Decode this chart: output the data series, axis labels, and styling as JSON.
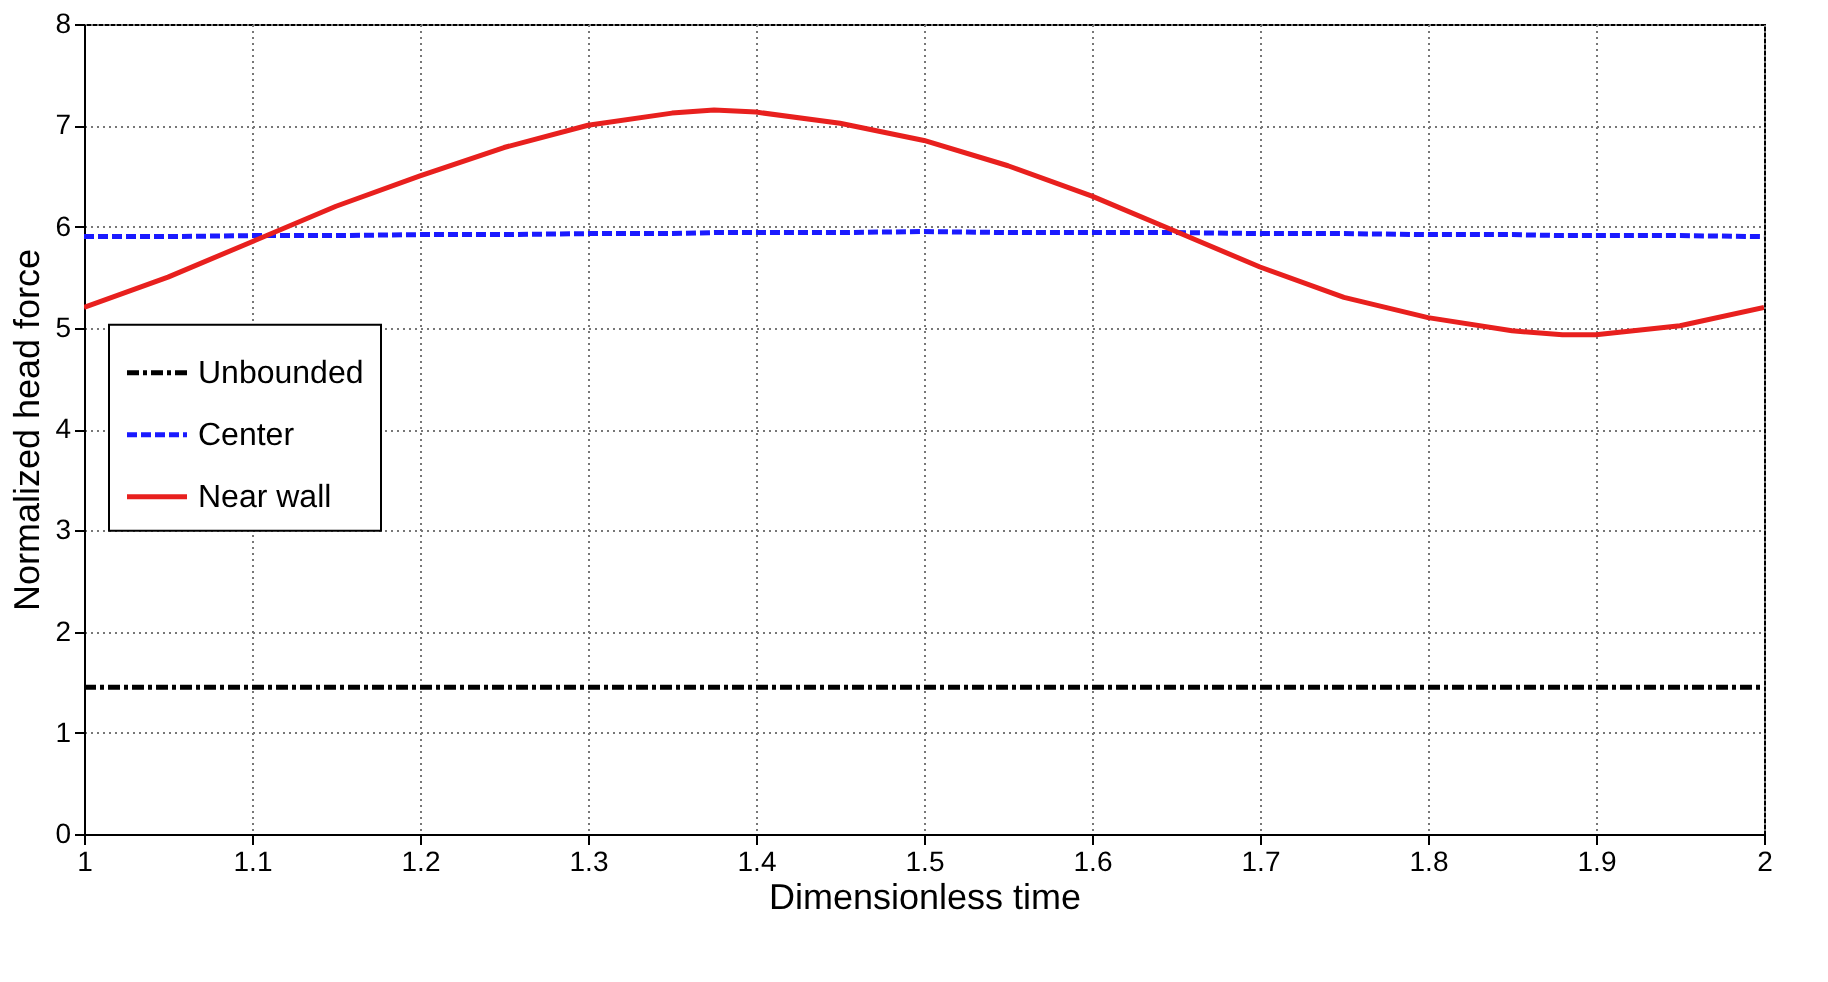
{
  "chart_data": {
    "type": "line",
    "xlabel": "Dimensionless time",
    "ylabel": "Normalized head force",
    "xlim": [
      1,
      2
    ],
    "xticks": [
      1,
      1.1,
      1.2,
      1.3,
      1.4,
      1.5,
      1.6,
      1.7,
      1.8,
      1.9,
      2
    ],
    "ylim": [
      0,
      8
    ],
    "yticks": [
      0,
      1,
      2,
      3,
      4,
      5,
      6,
      7,
      8
    ],
    "grid": true,
    "legend": "left",
    "marker": "none",
    "x": [
      1,
      1.05,
      1.1,
      1.15,
      1.2,
      1.25,
      1.3,
      1.35,
      1.375,
      1.4,
      1.45,
      1.5,
      1.55,
      1.6,
      1.65,
      1.7,
      1.75,
      1.8,
      1.85,
      1.88,
      1.9,
      1.95,
      2
    ],
    "series": [
      {
        "name": "Unbounded",
        "color": "#000000",
        "line_style": "dashdot",
        "values": [
          1.45,
          1.45,
          1.45,
          1.45,
          1.45,
          1.45,
          1.45,
          1.45,
          1.45,
          1.45,
          1.45,
          1.45,
          1.45,
          1.45,
          1.45,
          1.45,
          1.45,
          1.45,
          1.45,
          1.45,
          1.45,
          1.45,
          1.45
        ]
      },
      {
        "name": "Center",
        "color": "#1a1aff",
        "line_style": "dashed",
        "values": [
          5.9,
          5.9,
          5.91,
          5.91,
          5.92,
          5.92,
          5.93,
          5.93,
          5.94,
          5.94,
          5.94,
          5.95,
          5.94,
          5.94,
          5.94,
          5.93,
          5.93,
          5.92,
          5.92,
          5.91,
          5.91,
          5.91,
          5.9
        ]
      },
      {
        "name": "Near wall",
        "color": "#e8201e",
        "line_style": "solid",
        "values": [
          5.2,
          5.5,
          5.85,
          6.2,
          6.5,
          6.78,
          7.0,
          7.12,
          7.15,
          7.13,
          7.02,
          6.85,
          6.6,
          6.3,
          5.95,
          5.6,
          5.3,
          5.1,
          4.97,
          4.93,
          4.93,
          5.02,
          5.2
        ]
      }
    ]
  }
}
